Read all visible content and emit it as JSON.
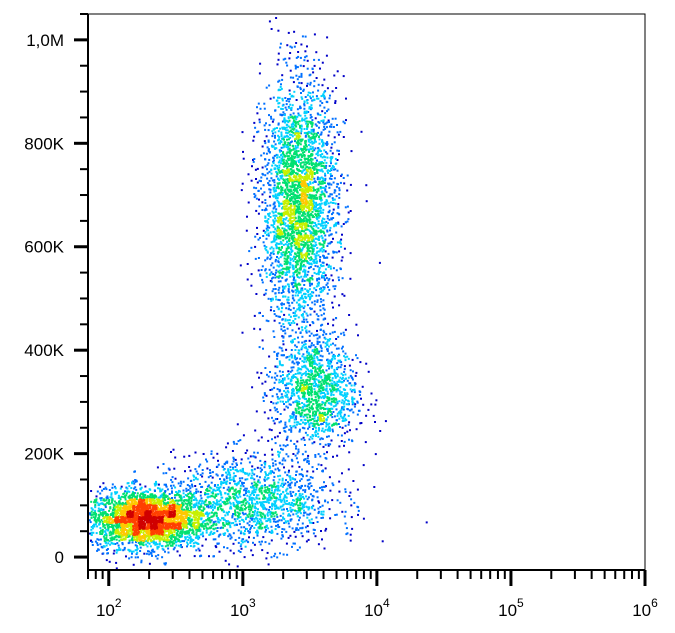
{
  "chart_data": {
    "type": "scatter",
    "title": "",
    "xlabel": "",
    "ylabel": "",
    "x_scale": "log",
    "xlim": [
      70,
      1000000
    ],
    "ylim": [
      -25000,
      1050000
    ],
    "x_ticks": [
      {
        "base": "10",
        "exp": "2",
        "value": 100
      },
      {
        "base": "10",
        "exp": "3",
        "value": 1000
      },
      {
        "base": "10",
        "exp": "4",
        "value": 10000
      },
      {
        "base": "10",
        "exp": "5",
        "value": 100000
      },
      {
        "base": "10",
        "exp": "6",
        "value": 1000000
      }
    ],
    "y_ticks": [
      {
        "label": "0",
        "value": 0
      },
      {
        "label": "200K",
        "value": 200000
      },
      {
        "label": "400K",
        "value": 400000
      },
      {
        "label": "600K",
        "value": 600000
      },
      {
        "label": "800K",
        "value": 800000
      },
      {
        "label": "1,0M",
        "value": 1000000
      }
    ],
    "populations": [
      {
        "center_x": 190,
        "center_y": 75000,
        "spread_log_x": 0.22,
        "spread_y": 28000,
        "weight": 0.34
      },
      {
        "center_x": 2600,
        "center_y": 680000,
        "spread_log_x": 0.14,
        "spread_y": 120000,
        "weight": 0.36
      },
      {
        "center_x": 3400,
        "center_y": 320000,
        "spread_log_x": 0.16,
        "spread_y": 55000,
        "weight": 0.14
      },
      {
        "center_x": 1200,
        "center_y": 110000,
        "spread_log_x": 0.3,
        "spread_y": 45000,
        "weight": 0.16
      }
    ],
    "density_colors": [
      "#0000c8",
      "#0070ff",
      "#00d0ff",
      "#00e070",
      "#c8f000",
      "#ffc800",
      "#ff4000",
      "#d00000"
    ],
    "grid": false,
    "legend": "none"
  }
}
